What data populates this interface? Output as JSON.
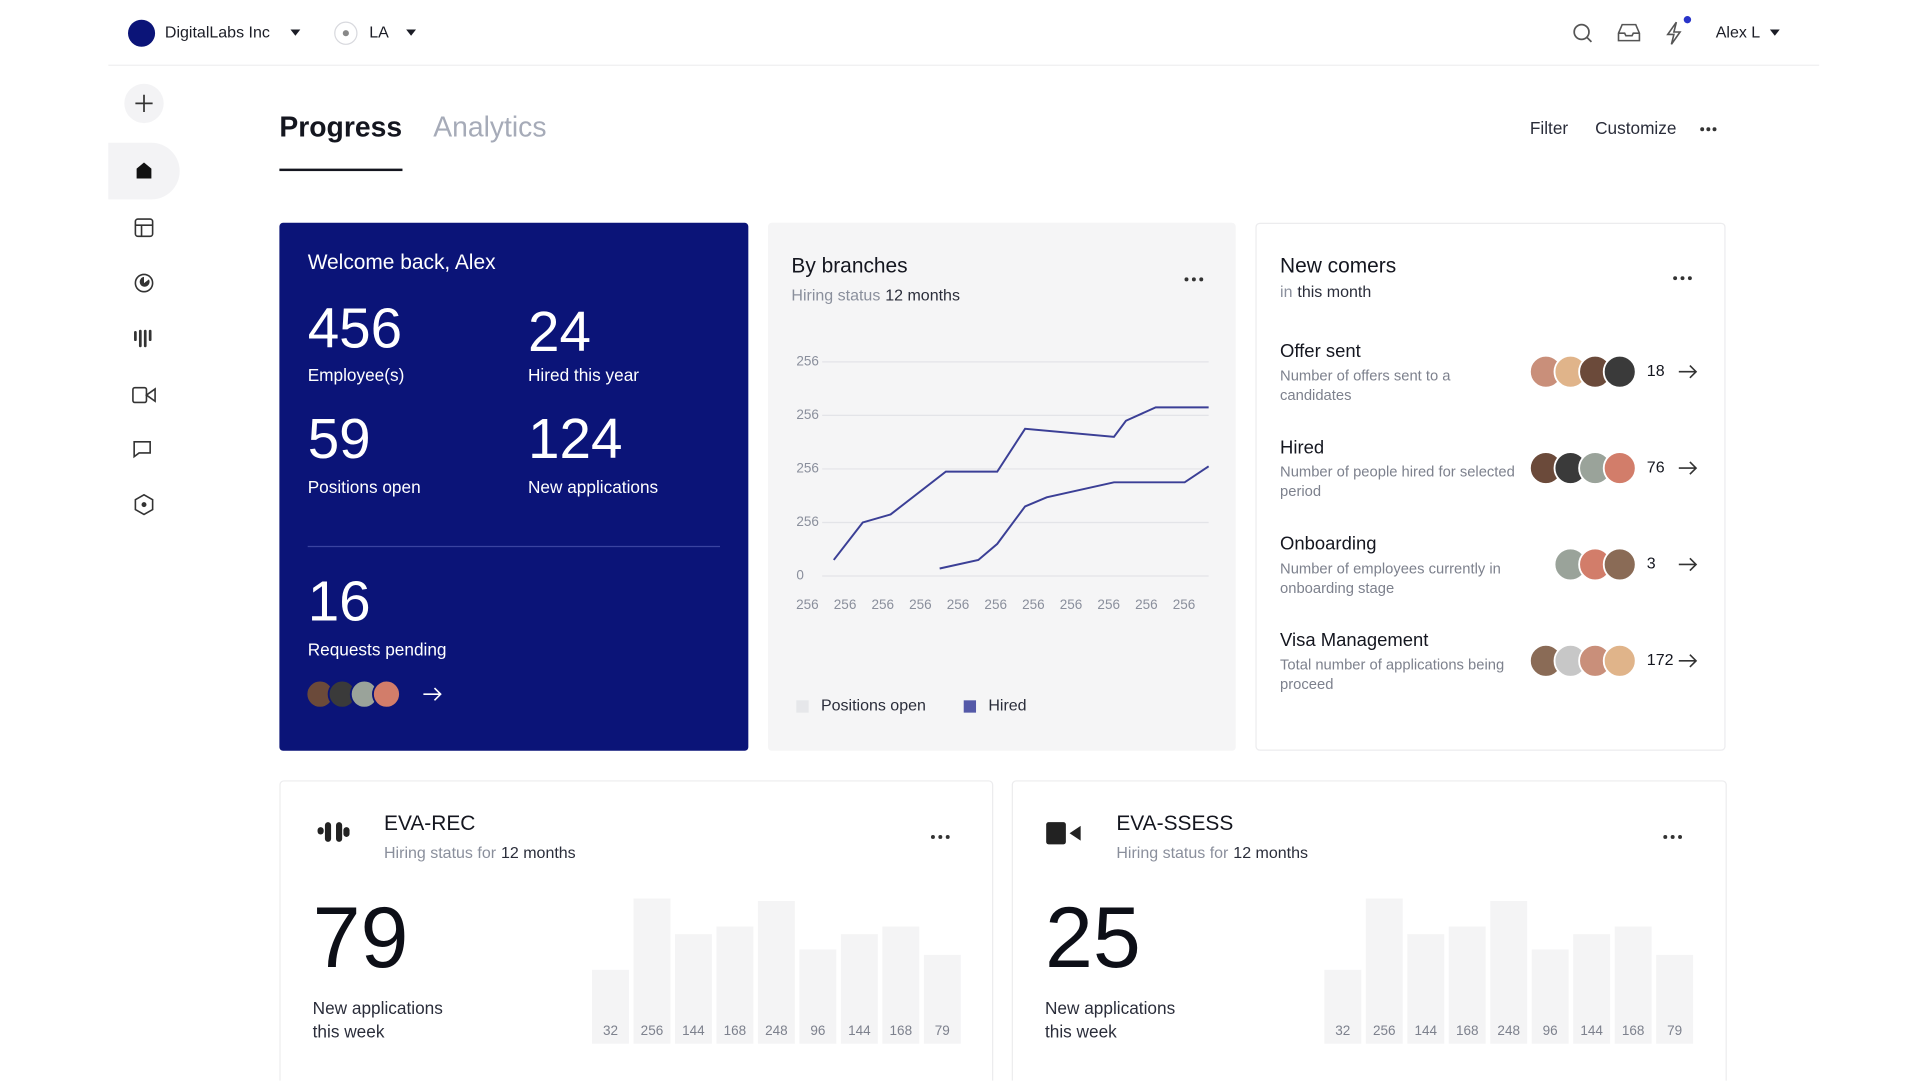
{
  "header": {
    "org": "DigitalLabs Inc",
    "location": "LA",
    "user": "Alex L"
  },
  "tabs": [
    "Progress",
    "Analytics"
  ],
  "actions": [
    "Filter",
    "Customize"
  ],
  "welcome": {
    "title": "Welcome back, Alex",
    "stats": [
      {
        "value": 456,
        "label": "Employee(s)"
      },
      {
        "value": 24,
        "label": "Hired this year"
      },
      {
        "value": 59,
        "label": "Positions open"
      },
      {
        "value": 124,
        "label": "New applications"
      }
    ],
    "pending": {
      "value": 16,
      "label": "Requests pending"
    }
  },
  "branches": {
    "title": "By branches",
    "subtitle_prefix": "Hiring status",
    "subtitle": "12 months",
    "chart": {
      "type": "line",
      "xlim": [
        0,
        100
      ],
      "ylim": [
        0,
        4
      ],
      "yticks": [
        {
          "value": 4,
          "label": "256"
        },
        {
          "value": 3,
          "label": "256"
        },
        {
          "value": 2,
          "label": "256"
        },
        {
          "value": 1,
          "label": "256"
        },
        0
      ],
      "categories": [
        "256",
        "256",
        "256",
        "256",
        "256",
        "256",
        "256",
        "256",
        "256",
        "256",
        "256"
      ],
      "series": [
        {
          "name": "Positions open",
          "color": "#e6e7ea",
          "line_color": "#3b3f96",
          "x": [
            3,
            10.5,
            17.7,
            32,
            45.3,
            52.5,
            75.5,
            78.6,
            86.3,
            100
          ],
          "values": [
            0.3,
            1,
            1.15,
            1.95,
            1.95,
            2.75,
            2.6,
            2.9,
            3.15,
            3.15
          ]
        },
        {
          "name": "Hired",
          "color": "#5459a8",
          "line_color": "#3b3f96",
          "x": [
            30.4,
            40.4,
            45.3,
            52.5,
            58.1,
            75.5,
            93.8,
            100
          ],
          "values": [
            0.14,
            0.3,
            0.6,
            1.3,
            1.47,
            1.75,
            1.75,
            2.05
          ]
        }
      ]
    }
  },
  "newcomers": {
    "title": "New comers",
    "subtitle_prefix": "in",
    "subtitle": "this month",
    "items": [
      {
        "title": "Offer sent",
        "desc": "Number of offers sent to a candidates",
        "count": 18
      },
      {
        "title": "Hired",
        "desc": "Number of people hired for selected period",
        "count": 76
      },
      {
        "title": "Onboarding",
        "desc": "Number of employees currently in onboarding stage",
        "count": 3
      },
      {
        "title": "Visa Management",
        "desc": "Total number of applications being proceed",
        "count": 172
      }
    ]
  },
  "eva": [
    {
      "title": "EVA-REC",
      "subtitle_prefix": "Hiring status for",
      "subtitle": "12 months",
      "value": 79,
      "label": "New applications this week",
      "chart": {
        "type": "bar",
        "ylim": [
          -200,
          260
        ],
        "values": [
          32,
          256,
          144,
          168,
          248,
          96,
          144,
          168,
          79
        ]
      }
    },
    {
      "title": "EVA-SSESS",
      "subtitle_prefix": "Hiring status for",
      "subtitle": "12 months",
      "value": 25,
      "label": "New applications this week",
      "chart": {
        "type": "bar",
        "ylim": [
          -200,
          260
        ],
        "values": [
          32,
          256,
          144,
          168,
          248,
          96,
          144,
          168,
          79
        ]
      }
    }
  ]
}
